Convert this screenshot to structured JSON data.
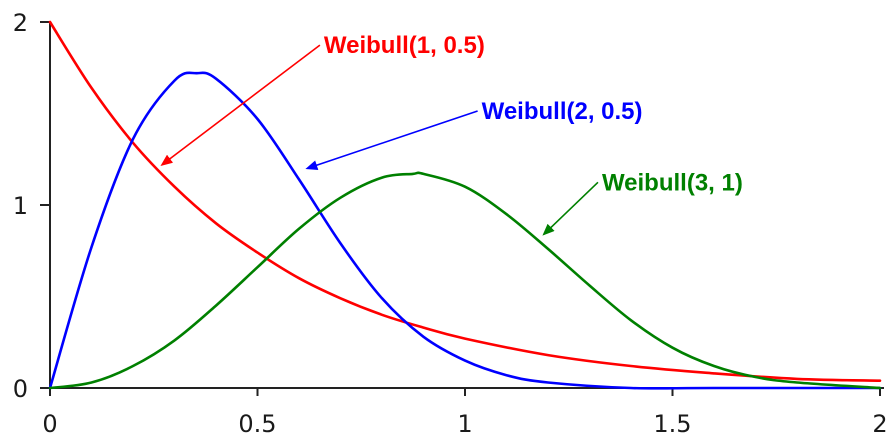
{
  "chart_data": {
    "type": "line",
    "title": "",
    "xlabel": "",
    "ylabel": "",
    "xlim": [
      0,
      2
    ],
    "ylim": [
      0,
      2
    ],
    "x_ticks": [
      0,
      0.5,
      1,
      1.5,
      2
    ],
    "y_ticks": [
      0,
      1,
      2
    ],
    "x_tick_labels": [
      "0",
      "0.5",
      "1",
      "1.5",
      "2"
    ],
    "y_tick_labels": [
      "0",
      "1",
      "2"
    ],
    "grid": false,
    "legend": "none",
    "series": [
      {
        "name": "Weibull(1, 0.5)",
        "color": "#ff0000",
        "x": [
          0,
          0.1,
          0.2,
          0.3,
          0.4,
          0.5,
          0.6,
          0.7,
          0.8,
          0.9,
          1.0,
          1.2,
          1.4,
          1.6,
          1.8,
          2.0
        ],
        "y": [
          2.0,
          1.64,
          1.34,
          1.1,
          0.9,
          0.74,
          0.6,
          0.49,
          0.4,
          0.33,
          0.27,
          0.18,
          0.12,
          0.08,
          0.05,
          0.04
        ]
      },
      {
        "name": "Weibull(2, 0.5)",
        "color": "#0000ff",
        "x": [
          0,
          0.1,
          0.2,
          0.3,
          0.354,
          0.4,
          0.5,
          0.6,
          0.7,
          0.8,
          0.9,
          1.0,
          1.1,
          1.2,
          1.4,
          1.6,
          2.0
        ],
        "y": [
          0,
          0.77,
          1.36,
          1.68,
          1.72,
          1.69,
          1.47,
          1.14,
          0.79,
          0.49,
          0.28,
          0.15,
          0.07,
          0.03,
          0.0,
          0.0,
          0.0
        ],
        "annotation": {
          "text": "Weibull(2, 0.5)",
          "x": 1.04,
          "y": 1.47,
          "arrow_to": [
            0.62,
            1.2
          ]
        }
      },
      {
        "name": "Weibull(3, 1)",
        "color": "#008000",
        "x": [
          0,
          0.1,
          0.2,
          0.3,
          0.4,
          0.5,
          0.6,
          0.7,
          0.8,
          0.874,
          0.9,
          1.0,
          1.1,
          1.2,
          1.3,
          1.4,
          1.5,
          1.6,
          1.7,
          1.8,
          2.0
        ],
        "y": [
          0,
          0.03,
          0.12,
          0.26,
          0.45,
          0.66,
          0.87,
          1.04,
          1.15,
          1.17,
          1.17,
          1.1,
          0.95,
          0.76,
          0.56,
          0.37,
          0.22,
          0.12,
          0.06,
          0.03,
          0.0
        ],
        "annotation": {
          "text": "Weibull(3, 1)",
          "x": 1.33,
          "y": 1.08,
          "arrow_to": [
            1.19,
            0.84
          ]
        }
      }
    ],
    "annotation_red": {
      "text": "Weibull(1, 0.5)",
      "x": 0.66,
      "y": 1.83,
      "arrow_to": [
        0.27,
        1.22
      ]
    }
  }
}
